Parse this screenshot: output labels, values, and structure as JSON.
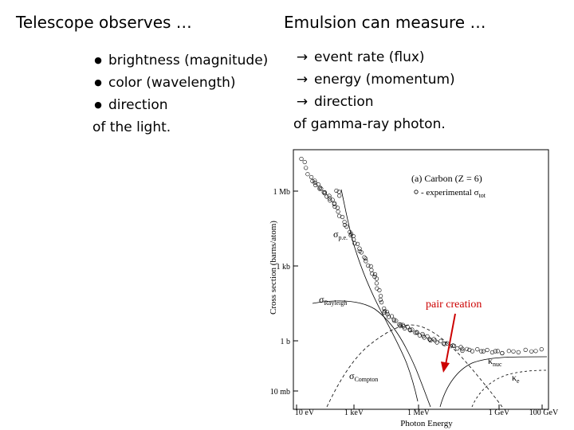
{
  "left": {
    "heading": "Telescope observes …",
    "items": [
      "brightness (magnitude)",
      "color (wavelength)",
      "direction"
    ],
    "footer": "of the light."
  },
  "right": {
    "heading": "Emulsion can measure …",
    "items": [
      "event rate (flux)",
      "energy (momentum)",
      "direction"
    ],
    "footer": "of gamma-ray photon."
  },
  "figure": {
    "panel_title": "(a) Carbon (Z = 6)",
    "legend_text": "- experimental σ",
    "legend_sub": "tot",
    "ylabel": "Cross section (barns/atom)",
    "xlabel": "Photon Energy",
    "y_ticks": [
      "1 Mb",
      "1 kb",
      "1 b",
      "10 mb"
    ],
    "x_ticks": [
      "10 eV",
      "1 keV",
      "1 MeV",
      "1 GeV",
      "100 GeV"
    ],
    "curve_labels": {
      "pe": "σ",
      "pe_sub": "p.e.",
      "rayleigh": "σ",
      "rayleigh_sub": "Rayleigh",
      "compton": "σ",
      "compton_sub": "Compton",
      "nuc": "κ",
      "nuc_sub": "nuc",
      "e": "κ",
      "e_sub": "e"
    },
    "annotation": "pair creation",
    "annotation_color": "#cc0000"
  }
}
